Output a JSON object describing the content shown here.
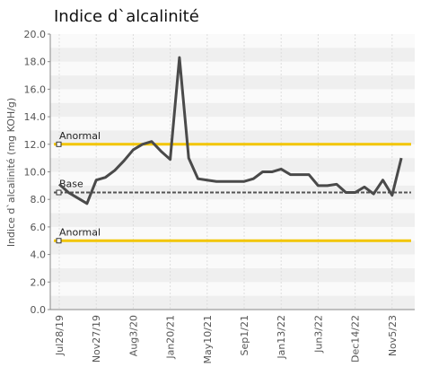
{
  "chart_data": {
    "type": "line",
    "title": "Indice d`alcalinité",
    "y_label": "Indice d`alcalinité (mg KOH/g)",
    "categories": [
      "Jul28/19",
      null,
      null,
      null,
      "Nov27/19",
      null,
      null,
      null,
      "Aug3/20",
      null,
      null,
      null,
      "Jan20/21",
      null,
      null,
      null,
      "May10/21",
      null,
      null,
      null,
      "Sep1/21",
      null,
      null,
      null,
      "Jan13/22",
      null,
      null,
      null,
      "Jun3/22",
      null,
      null,
      null,
      "Dec14/22",
      null,
      null,
      null,
      "Nov5/23",
      null
    ],
    "series": [
      {
        "name": "Indice d`alcalinité",
        "color": "#4a4a4a",
        "values": [
          9.1,
          8.5,
          8.1,
          7.7,
          9.4,
          9.6,
          10.1,
          10.8,
          11.6,
          12.0,
          12.2,
          11.5,
          10.9,
          18.3,
          11.0,
          9.5,
          9.4,
          9.3,
          9.3,
          9.3,
          9.3,
          9.5,
          10.0,
          10.0,
          10.2,
          9.8,
          9.8,
          9.8,
          9.0,
          9.0,
          9.1,
          8.5,
          8.5,
          8.9,
          8.4,
          9.4,
          8.3,
          11.0
        ]
      }
    ],
    "reference_lines": [
      {
        "label": "Anormal",
        "value": 12,
        "color": "#f2c500"
      },
      {
        "label": "Base",
        "value": 8.5,
        "color": "#555555"
      },
      {
        "label": "Anormal",
        "value": 5,
        "color": "#f2c500"
      }
    ],
    "ylim": [
      0,
      20
    ],
    "yticks": [
      {
        "value": 0,
        "label": "0.0"
      },
      {
        "value": 2,
        "label": "2.0"
      },
      {
        "value": 4,
        "label": "4.0"
      },
      {
        "value": 6,
        "label": "6.0"
      },
      {
        "value": 8,
        "label": "8.0"
      },
      {
        "value": 10,
        "label": "10.0"
      },
      {
        "value": 12,
        "label": "12.0"
      },
      {
        "value": 14,
        "label": "14.0"
      },
      {
        "value": 16,
        "label": "16.0"
      },
      {
        "value": 18,
        "label": "18.0"
      },
      {
        "value": 20,
        "label": "20.0"
      }
    ]
  }
}
